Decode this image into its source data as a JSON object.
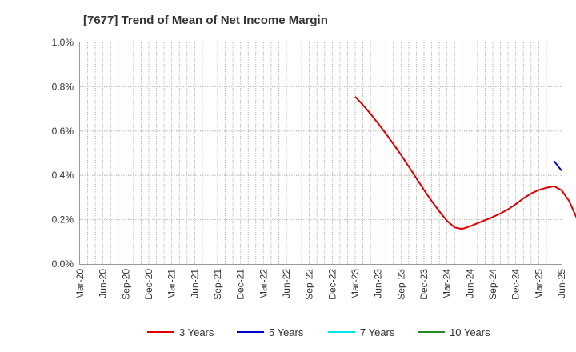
{
  "chart_data": {
    "type": "line",
    "title": "[7677]  Trend of Mean of Net Income Margin",
    "xlabel": "",
    "ylabel": "",
    "ylim": [
      0,
      1.0
    ],
    "yticks": [
      0,
      0.2,
      0.4,
      0.6,
      0.8,
      1.0
    ],
    "ytick_labels": [
      "0.0%",
      "0.2%",
      "0.4%",
      "0.6%",
      "0.8%",
      "1.0%"
    ],
    "x_tick_labels": [
      "Mar-20",
      "Jun-20",
      "Sep-20",
      "Dec-20",
      "Mar-21",
      "Jun-21",
      "Sep-21",
      "Dec-21",
      "Mar-22",
      "Jun-22",
      "Sep-22",
      "Dec-22",
      "Mar-23",
      "Jun-23",
      "Sep-23",
      "Dec-23",
      "Mar-24",
      "Jun-24",
      "Sep-24",
      "Dec-24",
      "Mar-25",
      "Jun-25"
    ],
    "grid": true,
    "legend_position": "bottom",
    "series": [
      {
        "name": "3 Years",
        "color": "#dd0000",
        "start_month_index": 36,
        "values": [
          0.755,
          0.718,
          0.678,
          0.634,
          0.589,
          0.541,
          0.492,
          0.44,
          0.387,
          0.334,
          0.284,
          0.238,
          0.195,
          0.165,
          0.158,
          0.17,
          0.184,
          0.198,
          0.212,
          0.228,
          0.247,
          0.27,
          0.296,
          0.318,
          0.334,
          0.344,
          0.351,
          0.333,
          0.283,
          0.205
        ]
      },
      {
        "name": "5 Years",
        "color": "#0000cc",
        "start_month_index": 62,
        "values": [
          0.465,
          0.421
        ]
      },
      {
        "name": "7 Years",
        "color": "#00e5ee",
        "start_month_index": 0,
        "values": []
      },
      {
        "name": "10 Years",
        "color": "#228b22",
        "start_month_index": 0,
        "values": []
      }
    ]
  }
}
